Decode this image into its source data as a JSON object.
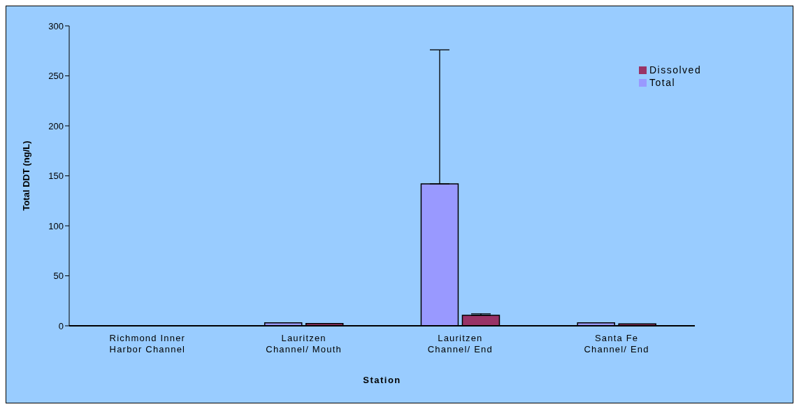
{
  "chart_data": {
    "type": "bar",
    "xlabel": "Station",
    "ylabel": "Total DDT (ng/L)",
    "categories": [
      "Richmond Inner Harbor Channel",
      "Lauritzen Channel/ Mouth",
      "Lauritzen Channel/ End",
      "Santa Fe Channel/ End"
    ],
    "series": [
      {
        "name": "Total",
        "color": "#9999ff",
        "values": [
          null,
          3,
          142,
          3
        ],
        "errors": [
          null,
          null,
          [
            142,
            276
          ],
          null
        ]
      },
      {
        "name": "Dissolved",
        "color": "#993366",
        "values": [
          null,
          2.3,
          10.5,
          2
        ],
        "errors": [
          null,
          null,
          [
            10.5,
            12
          ],
          null
        ]
      }
    ],
    "ylim": [
      0,
      300
    ],
    "yticks": [
      0,
      50,
      100,
      150,
      200,
      250,
      300
    ],
    "grid": false,
    "legend": "top right"
  }
}
